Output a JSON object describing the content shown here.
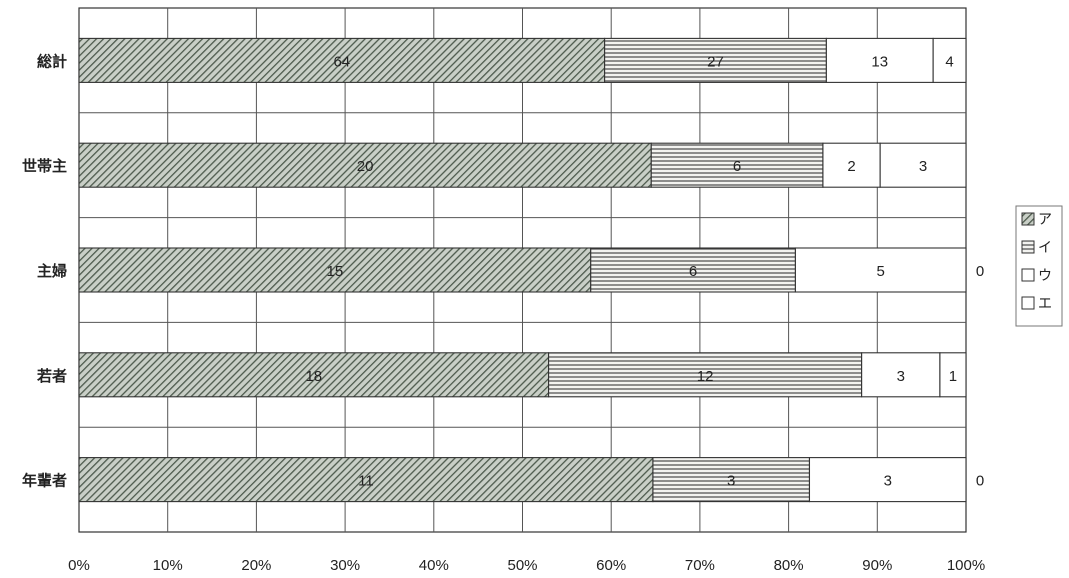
{
  "chart_data": {
    "type": "bar",
    "orientation": "horizontal",
    "stacked": "percent",
    "categories": [
      "総計",
      "世帯主",
      "主婦",
      "若者",
      "年輩者"
    ],
    "series": [
      {
        "name": "ア",
        "values": [
          64,
          20,
          15,
          18,
          11
        ],
        "pattern": "diagonal-hatch",
        "color": "#5a6a5a"
      },
      {
        "name": "イ",
        "values": [
          27,
          6,
          6,
          12,
          3
        ],
        "pattern": "horizontal-lines",
        "color": "#333333"
      },
      {
        "name": "ウ",
        "values": [
          13,
          2,
          5,
          3,
          3
        ],
        "pattern": "blank",
        "color": "#ffffff"
      },
      {
        "name": "エ",
        "values": [
          4,
          3,
          0,
          1,
          0
        ],
        "pattern": "blank",
        "color": "#ffffff"
      }
    ],
    "xlim": [
      0,
      100
    ],
    "x_ticks": [
      "0%",
      "10%",
      "20%",
      "30%",
      "40%",
      "50%",
      "60%",
      "70%",
      "80%",
      "90%",
      "100%"
    ],
    "grid": true,
    "legend_position": "right"
  }
}
